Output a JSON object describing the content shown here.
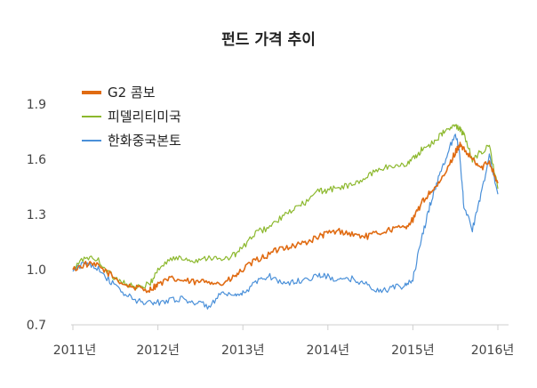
{
  "chart_data": {
    "type": "line",
    "title": "펀드 가격 추이",
    "xlabel": "",
    "ylabel": "",
    "x_ticks": [
      "2011년",
      "2012년",
      "2013년",
      "2014년",
      "2015년",
      "2016년"
    ],
    "x_range": [
      2011.0,
      2016.0
    ],
    "y_ticks": [
      "0.7",
      "1.0",
      "1.3",
      "1.6",
      "1.9"
    ],
    "ylim": [
      0.7,
      1.9
    ],
    "grid": false,
    "legend_position": "top-left",
    "x": [
      2011.0,
      2011.15,
      2011.3,
      2011.45,
      2011.6,
      2011.75,
      2011.9,
      2012.0,
      2012.15,
      2012.3,
      2012.45,
      2012.6,
      2012.75,
      2012.9,
      2013.0,
      2013.15,
      2013.3,
      2013.45,
      2013.6,
      2013.75,
      2013.9,
      2014.0,
      2014.15,
      2014.3,
      2014.45,
      2014.6,
      2014.75,
      2014.9,
      2015.0,
      2015.1,
      2015.2,
      2015.3,
      2015.4,
      2015.5,
      2015.55,
      2015.6,
      2015.7,
      2015.8,
      2015.9,
      2016.0
    ],
    "series": [
      {
        "name": "G2 콤보",
        "color": "#e06b12",
        "values": [
          1.0,
          1.03,
          1.02,
          0.97,
          0.92,
          0.9,
          0.89,
          0.92,
          0.95,
          0.94,
          0.93,
          0.94,
          0.92,
          0.96,
          1.0,
          1.05,
          1.08,
          1.12,
          1.13,
          1.15,
          1.18,
          1.2,
          1.21,
          1.19,
          1.18,
          1.2,
          1.22,
          1.23,
          1.27,
          1.36,
          1.42,
          1.46,
          1.54,
          1.64,
          1.68,
          1.65,
          1.6,
          1.55,
          1.59,
          1.47
        ]
      },
      {
        "name": "피델리티미국",
        "color": "#8cb82d",
        "values": [
          1.0,
          1.07,
          1.05,
          0.97,
          0.93,
          0.9,
          0.92,
          1.0,
          1.06,
          1.06,
          1.05,
          1.07,
          1.05,
          1.08,
          1.12,
          1.2,
          1.23,
          1.28,
          1.33,
          1.37,
          1.43,
          1.43,
          1.45,
          1.46,
          1.5,
          1.55,
          1.56,
          1.57,
          1.6,
          1.65,
          1.68,
          1.72,
          1.76,
          1.78,
          1.77,
          1.73,
          1.6,
          1.64,
          1.67,
          1.44
        ]
      },
      {
        "name": "한화중국본토",
        "color": "#4a90d9",
        "values": [
          0.99,
          1.04,
          1.01,
          0.93,
          0.87,
          0.83,
          0.82,
          0.82,
          0.84,
          0.84,
          0.82,
          0.8,
          0.87,
          0.85,
          0.87,
          0.93,
          0.97,
          0.93,
          0.93,
          0.95,
          0.97,
          0.96,
          0.94,
          0.95,
          0.92,
          0.88,
          0.9,
          0.91,
          0.95,
          1.16,
          1.35,
          1.5,
          1.62,
          1.75,
          1.63,
          1.35,
          1.22,
          1.4,
          1.62,
          1.41
        ]
      }
    ]
  }
}
